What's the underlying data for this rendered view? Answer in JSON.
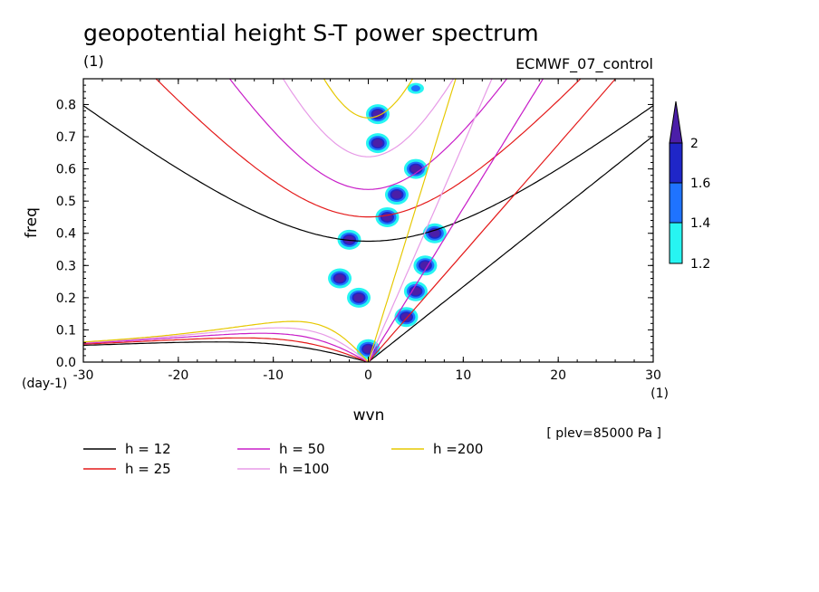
{
  "chart_data": {
    "type": "line",
    "title": "geopotential height S-T power spectrum",
    "subtitle_left": "(1)",
    "subtitle_right": "ECMWF_07_control",
    "xlabel": "wvn",
    "x_unit": "(1)",
    "ylabel": "freq",
    "y_unit": "(day-1)",
    "xlim": [
      -30,
      30
    ],
    "ylim": [
      0,
      0.88
    ],
    "x_ticks": [
      -30,
      -20,
      -10,
      0,
      10,
      20,
      30
    ],
    "y_ticks": [
      0.0,
      0.1,
      0.2,
      0.3,
      0.4,
      0.5,
      0.6,
      0.7,
      0.8
    ],
    "x_tick_labels": [
      "-30",
      "-20",
      "-10",
      "0",
      "10",
      "20",
      "30"
    ],
    "y_tick_labels": [
      "0.0",
      "0.1",
      "0.2",
      "0.3",
      "0.4",
      "0.5",
      "0.6",
      "0.7",
      "0.8"
    ],
    "annotation": "[ plev=85000 Pa ]",
    "colorbar": {
      "levels": [
        "2",
        "1.6",
        "1.4",
        "1.2"
      ],
      "colors": [
        "#4b1ea8",
        "#1f26c8",
        "#1f73ff",
        "#27f5f2"
      ]
    },
    "series": [
      {
        "name": "h = 12",
        "h": 12,
        "color": "#000000"
      },
      {
        "name": "h = 25",
        "h": 25,
        "color": "#e41a1a"
      },
      {
        "name": "h = 50",
        "h": 50,
        "color": "#c81ec8"
      },
      {
        "name": "h =100",
        "h": 100,
        "color": "#e79be7"
      },
      {
        "name": "h =200",
        "h": 200,
        "color": "#e6c800"
      }
    ],
    "spectral_peaks": [
      {
        "wvn": 1,
        "freq": 0.77,
        "value": 2.0
      },
      {
        "wvn": 1,
        "freq": 0.68,
        "value": 2.0
      },
      {
        "wvn": 5,
        "freq": 0.6,
        "value": 2.0
      },
      {
        "wvn": 3,
        "freq": 0.52,
        "value": 2.0
      },
      {
        "wvn": 2,
        "freq": 0.45,
        "value": 2.0
      },
      {
        "wvn": 7,
        "freq": 0.4,
        "value": 2.0
      },
      {
        "wvn": 6,
        "freq": 0.3,
        "value": 2.0
      },
      {
        "wvn": 5,
        "freq": 0.22,
        "value": 2.0
      },
      {
        "wvn": -1,
        "freq": 0.2,
        "value": 2.0
      },
      {
        "wvn": -3,
        "freq": 0.26,
        "value": 2.0
      },
      {
        "wvn": 4,
        "freq": 0.14,
        "value": 2.0
      },
      {
        "wvn": 0,
        "freq": 0.04,
        "value": 2.0
      },
      {
        "wvn": 5,
        "freq": 0.85,
        "value": 1.4
      },
      {
        "wvn": -2,
        "freq": 0.38,
        "value": 2.0
      }
    ]
  }
}
